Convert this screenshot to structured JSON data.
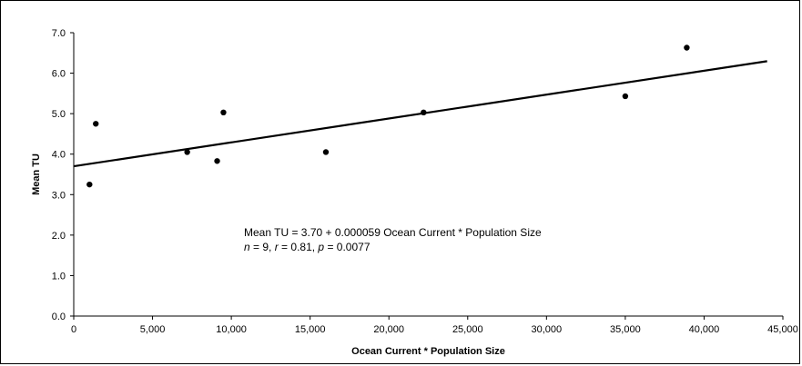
{
  "chart_data": {
    "type": "scatter",
    "xlabel": "Ocean Current * Population Size",
    "ylabel": "Mean TU",
    "xlim": [
      0,
      45000
    ],
    "ylim": [
      0,
      7
    ],
    "x_ticks": [
      0,
      5000,
      10000,
      15000,
      20000,
      25000,
      30000,
      35000,
      40000,
      45000
    ],
    "x_tick_labels": [
      "0",
      "5,000",
      "10,000",
      "15,000",
      "20,000",
      "25,000",
      "30,000",
      "35,000",
      "40,000",
      "45,000"
    ],
    "y_ticks": [
      0,
      1,
      2,
      3,
      4,
      5,
      6,
      7
    ],
    "y_tick_labels": [
      "0.0",
      "1.0",
      "2.0",
      "3.0",
      "4.0",
      "5.0",
      "6.0",
      "7.0"
    ],
    "grid": false,
    "points": [
      {
        "x": 1000,
        "y": 3.25
      },
      {
        "x": 1400,
        "y": 4.75
      },
      {
        "x": 7200,
        "y": 4.05
      },
      {
        "x": 9100,
        "y": 3.83
      },
      {
        "x": 9500,
        "y": 5.03
      },
      {
        "x": 16000,
        "y": 4.05
      },
      {
        "x": 22200,
        "y": 5.03
      },
      {
        "x": 35000,
        "y": 5.43
      },
      {
        "x": 38900,
        "y": 6.63
      }
    ],
    "trendline": {
      "intercept": 3.7,
      "slope": 5.9e-05,
      "x_range": [
        0,
        44000
      ]
    },
    "annotation": {
      "line1": "Mean TU = 3.70 + 0.000059 Ocean Current * Population Size",
      "line2": [
        {
          "text": "n",
          "italic": true
        },
        {
          "text": " = 9, ",
          "italic": false
        },
        {
          "text": "r",
          "italic": true
        },
        {
          "text": " = 0.81, ",
          "italic": false
        },
        {
          "text": "p",
          "italic": true
        },
        {
          "text": " = 0.0077",
          "italic": false
        }
      ]
    }
  }
}
